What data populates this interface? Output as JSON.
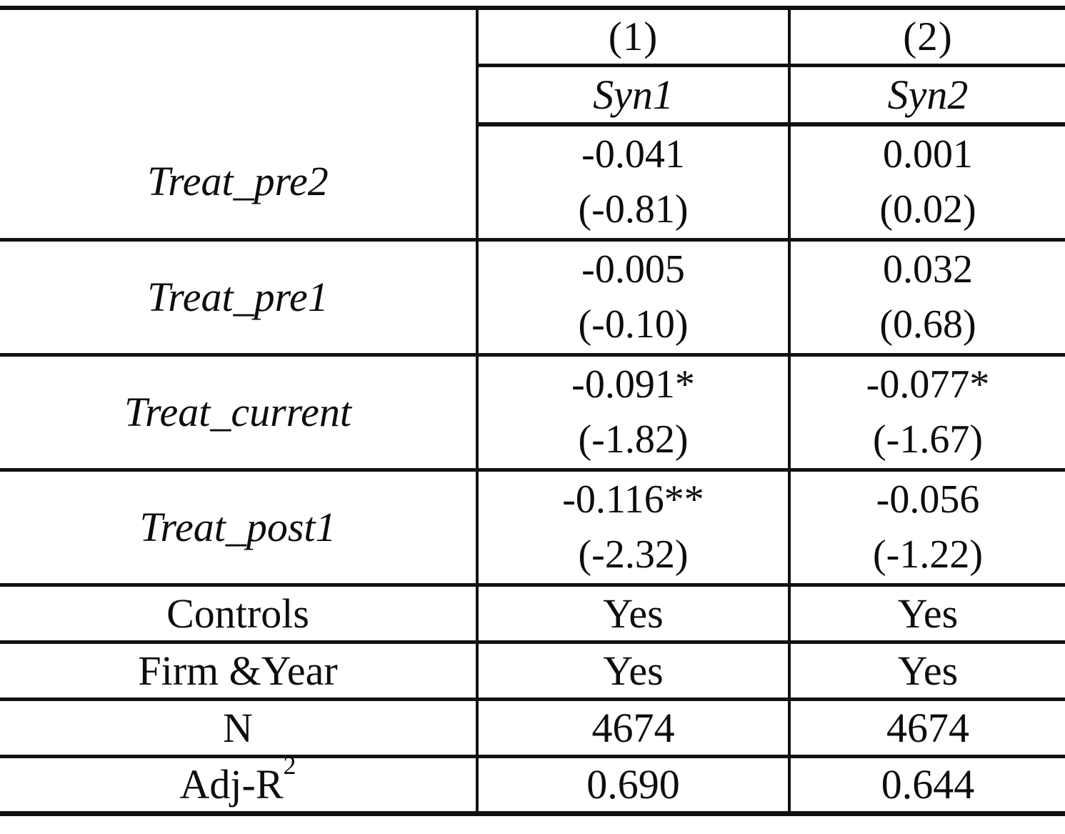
{
  "table": {
    "model_numbers": [
      "(1)",
      "(2)"
    ],
    "dep_vars": [
      "Syn1",
      "Syn2"
    ],
    "coef_rows": [
      {
        "label": "Treat_pre2",
        "cells": [
          {
            "est": "-0.041",
            "t": "(-0.81)"
          },
          {
            "est": "0.001",
            "t": "(0.02)"
          }
        ]
      },
      {
        "label": "Treat_pre1",
        "cells": [
          {
            "est": "-0.005",
            "t": "(-0.10)"
          },
          {
            "est": "0.032",
            "t": "(0.68)"
          }
        ]
      },
      {
        "label": "Treat_current",
        "cells": [
          {
            "est": "-0.091*",
            "t": "(-1.82)"
          },
          {
            "est": "-0.077*",
            "t": "(-1.67)"
          }
        ]
      },
      {
        "label": "Treat_post1",
        "cells": [
          {
            "est": "-0.116**",
            "t": "(-2.32)"
          },
          {
            "est": "-0.056",
            "t": "(-1.22)"
          }
        ]
      }
    ],
    "stat_rows": [
      {
        "label": "Controls",
        "values": [
          "Yes",
          "Yes"
        ]
      },
      {
        "label": "Firm &Year",
        "values": [
          "Yes",
          "Yes"
        ]
      },
      {
        "label": "N",
        "values": [
          "4674",
          "4674"
        ]
      },
      {
        "label": "Adj-R",
        "label_sup": "2",
        "values": [
          "0.690",
          "0.644"
        ]
      }
    ]
  },
  "chart_data": {
    "type": "table",
    "columns": [
      "",
      "(1) Syn1",
      "(2) Syn2"
    ],
    "rows": [
      [
        "Treat_pre2",
        "-0.041 (-0.81)",
        "0.001 (0.02)"
      ],
      [
        "Treat_pre1",
        "-0.005 (-0.10)",
        "0.032 (0.68)"
      ],
      [
        "Treat_current",
        "-0.091* (-1.82)",
        "-0.077* (-1.67)"
      ],
      [
        "Treat_post1",
        "-0.116** (-2.32)",
        "-0.056 (-1.22)"
      ],
      [
        "Controls",
        "Yes",
        "Yes"
      ],
      [
        "Firm &Year",
        "Yes",
        "Yes"
      ],
      [
        "N",
        "4674",
        "4674"
      ],
      [
        "Adj-R2",
        "0.690",
        "0.644"
      ]
    ]
  }
}
